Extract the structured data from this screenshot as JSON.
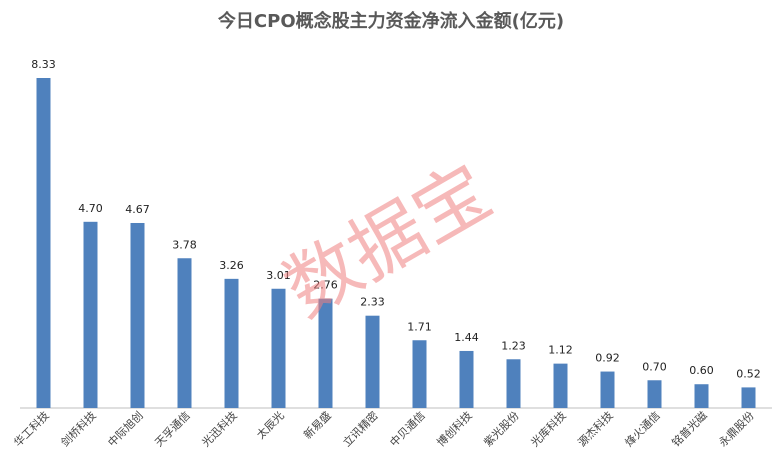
{
  "chart_data": {
    "type": "bar",
    "title": "今日CPO概念股主力资金净流入金额(亿元)",
    "categories": [
      "华工科技",
      "剑桥科技",
      "中际旭创",
      "天孚通信",
      "光迅科技",
      "太辰光",
      "新易盛",
      "立讯精密",
      "中贝通信",
      "博创科技",
      "紫光股份",
      "光库科技",
      "源杰科技",
      "烽火通信",
      "铭普光磁",
      "永鼎股份"
    ],
    "values": [
      8.33,
      4.7,
      4.67,
      3.78,
      3.26,
      3.01,
      2.76,
      2.33,
      1.71,
      1.44,
      1.23,
      1.12,
      0.92,
      0.7,
      0.6,
      0.52
    ],
    "value_labels": [
      "8.33",
      "4.70",
      "4.67",
      "3.78",
      "3.26",
      "3.01",
      "2.76",
      "2.33",
      "1.71",
      "1.44",
      "1.23",
      "1.12",
      "0.92",
      "0.70",
      "0.60",
      "0.52"
    ],
    "color": "#4f81bd",
    "watermark": "数据宝"
  }
}
